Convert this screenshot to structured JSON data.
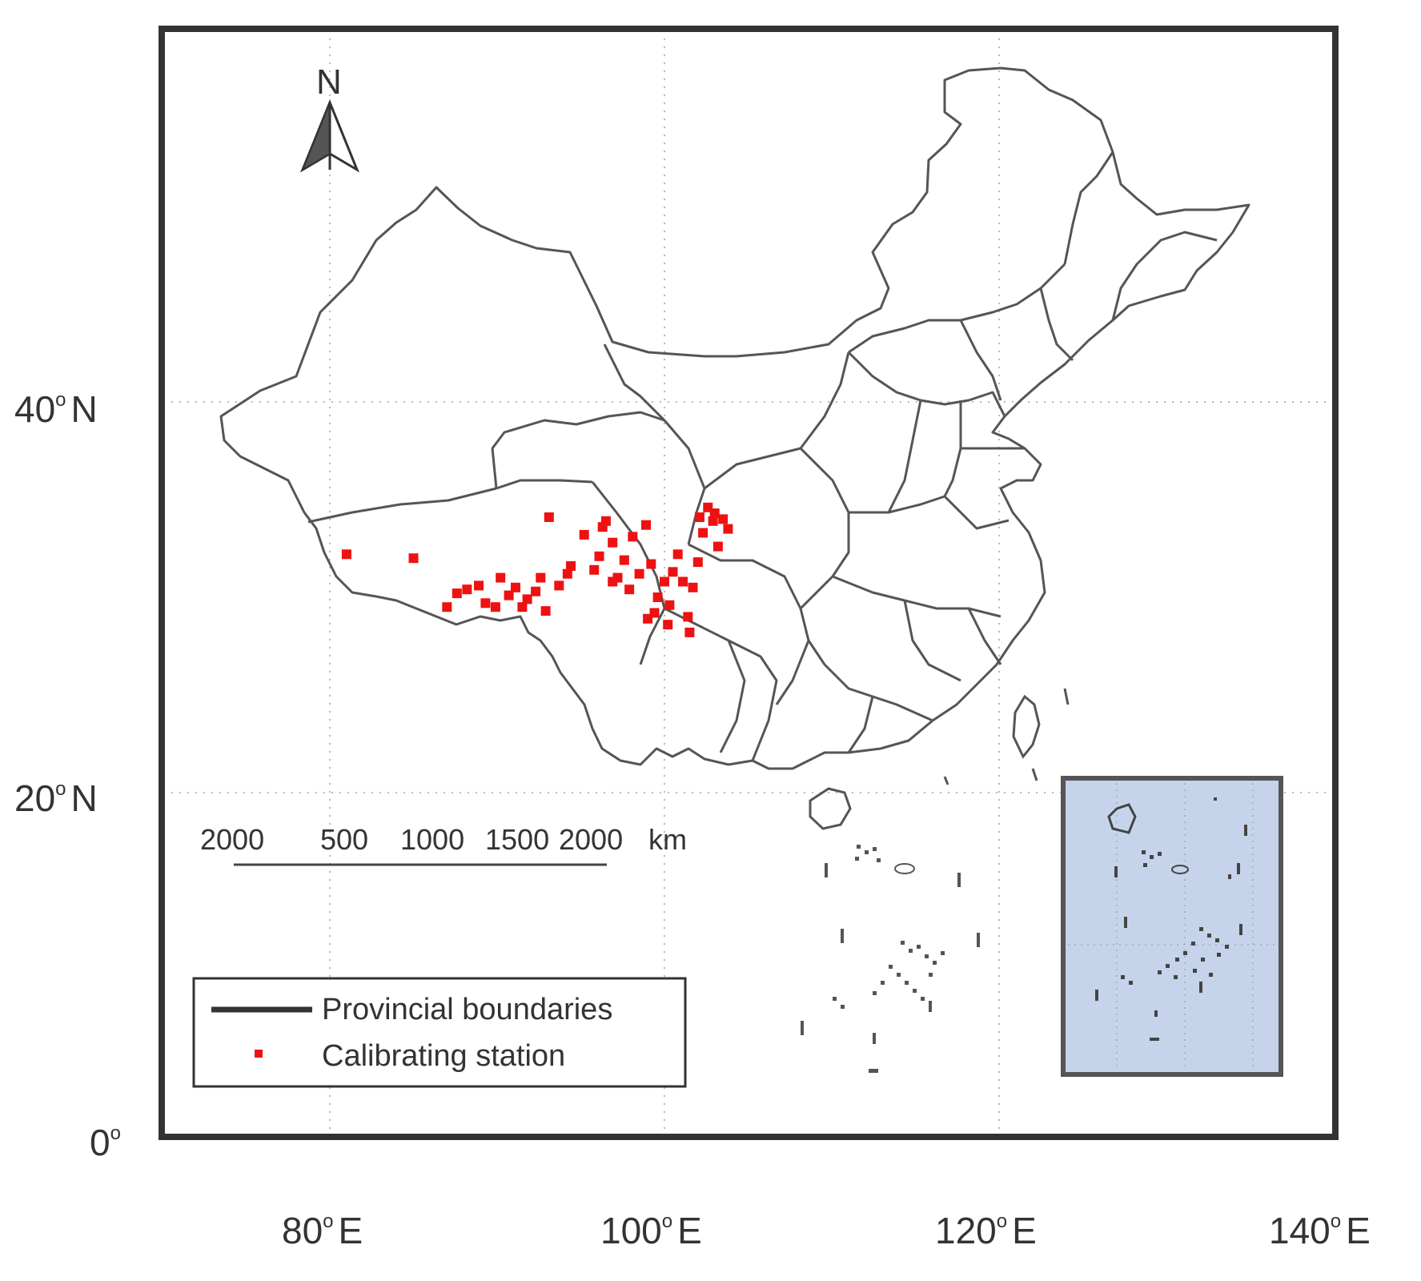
{
  "map": {
    "north_arrow": "N",
    "lat_labels": [
      {
        "deg": "40",
        "hemi": "N"
      },
      {
        "deg": "20",
        "hemi": "N"
      },
      {
        "deg": "0",
        "hemi": ""
      }
    ],
    "lon_labels": [
      {
        "deg": "80",
        "hemi": "E"
      },
      {
        "deg": "100",
        "hemi": "E"
      },
      {
        "deg": "120",
        "hemi": "E"
      },
      {
        "deg": "140",
        "hemi": "E"
      }
    ],
    "scale_bar": {
      "ticks": [
        "2000",
        "500",
        "1000",
        "1500",
        "2000"
      ],
      "unit": "km"
    },
    "legend": {
      "boundary_label": "Provincial boundaries",
      "station_label": "Calibrating station"
    },
    "colors": {
      "station": "#ee1111",
      "boundary": "#555555",
      "inset_fill": "#c5d4ea",
      "frame": "#333333"
    },
    "stations": [
      [
        81.0,
        32.2
      ],
      [
        85.0,
        32.0
      ],
      [
        87.0,
        29.5
      ],
      [
        87.6,
        30.2
      ],
      [
        88.2,
        30.4
      ],
      [
        88.9,
        30.6
      ],
      [
        89.3,
        29.7
      ],
      [
        89.9,
        29.5
      ],
      [
        90.2,
        31.0
      ],
      [
        90.7,
        30.1
      ],
      [
        91.1,
        30.5
      ],
      [
        91.5,
        29.5
      ],
      [
        91.8,
        29.9
      ],
      [
        92.3,
        30.3
      ],
      [
        92.6,
        31.0
      ],
      [
        92.9,
        29.3
      ],
      [
        93.1,
        34.1
      ],
      [
        93.7,
        30.6
      ],
      [
        94.2,
        31.2
      ],
      [
        94.4,
        31.6
      ],
      [
        95.2,
        33.2
      ],
      [
        95.8,
        31.4
      ],
      [
        96.1,
        32.1
      ],
      [
        96.5,
        33.9
      ],
      [
        96.9,
        32.8
      ],
      [
        97.2,
        31.0
      ],
      [
        97.6,
        31.9
      ],
      [
        98.1,
        33.1
      ],
      [
        98.5,
        31.2
      ],
      [
        98.9,
        33.7
      ],
      [
        99.2,
        31.7
      ],
      [
        99.6,
        30.0
      ],
      [
        99.4,
        29.2
      ],
      [
        100.0,
        30.8
      ],
      [
        100.3,
        29.6
      ],
      [
        100.5,
        31.3
      ],
      [
        100.8,
        32.2
      ],
      [
        101.1,
        30.8
      ],
      [
        101.4,
        29.0
      ],
      [
        101.7,
        30.5
      ],
      [
        102.0,
        31.8
      ],
      [
        102.3,
        33.3
      ],
      [
        102.6,
        34.6
      ],
      [
        102.9,
        33.9
      ],
      [
        103.2,
        32.6
      ],
      [
        103.5,
        34.0
      ],
      [
        103.8,
        33.5
      ],
      [
        101.5,
        28.2
      ],
      [
        100.2,
        28.6
      ],
      [
        99.0,
        28.9
      ],
      [
        97.9,
        30.4
      ],
      [
        96.9,
        30.8
      ],
      [
        96.3,
        33.6
      ],
      [
        102.1,
        34.1
      ],
      [
        103.0,
        34.3
      ]
    ]
  }
}
